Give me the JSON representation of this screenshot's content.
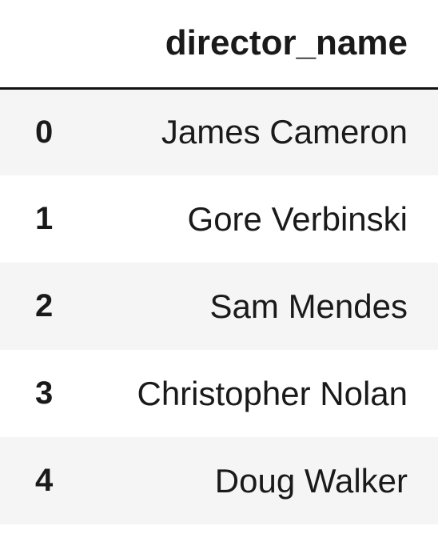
{
  "table": {
    "columns": [
      "director_name"
    ],
    "rows": [
      {
        "index": "0",
        "director_name": "James Cameron"
      },
      {
        "index": "1",
        "director_name": "Gore Verbinski"
      },
      {
        "index": "2",
        "director_name": "Sam Mendes"
      },
      {
        "index": "3",
        "director_name": "Christopher Nolan"
      },
      {
        "index": "4",
        "director_name": "Doug Walker"
      }
    ]
  },
  "colors": {
    "stripe": "#f5f5f5",
    "header_rule": "#111111",
    "text": "#1a1a1a"
  }
}
